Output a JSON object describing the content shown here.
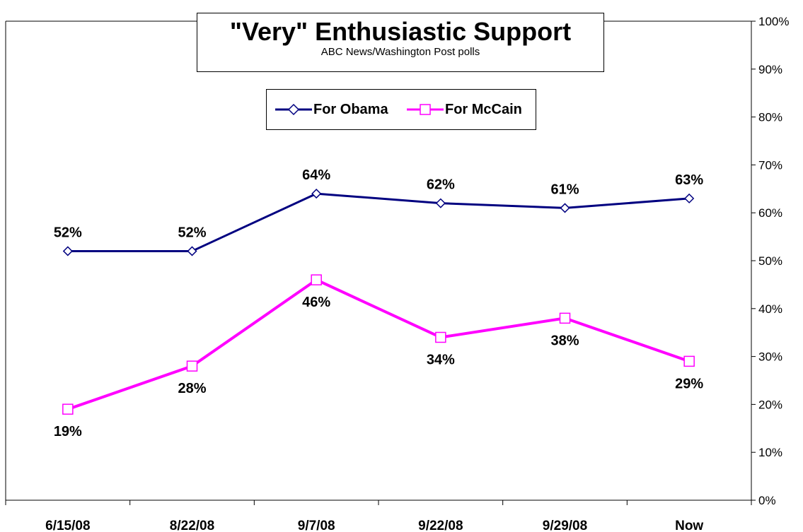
{
  "chart_data": {
    "type": "line",
    "title": "\"Very\" Enthusiastic Support",
    "subtitle": "ABC News/Washington Post polls",
    "categories": [
      "6/15/08",
      "8/22/08",
      "9/7/08",
      "9/22/08",
      "9/29/08",
      "Now"
    ],
    "series": [
      {
        "name": "For Obama",
        "values": [
          52,
          52,
          64,
          62,
          61,
          63
        ],
        "labels": [
          "52%",
          "52%",
          "64%",
          "62%",
          "61%",
          "63%"
        ],
        "color": "#000080",
        "marker": "diamond"
      },
      {
        "name": "For McCain",
        "values": [
          19,
          28,
          46,
          34,
          38,
          29
        ],
        "labels": [
          "19%",
          "28%",
          "46%",
          "34%",
          "38%",
          "29%"
        ],
        "color": "#ff00ff",
        "marker": "square"
      }
    ],
    "ylim": [
      0,
      100
    ],
    "yticks": [
      "0%",
      "10%",
      "20%",
      "30%",
      "40%",
      "50%",
      "60%",
      "70%",
      "80%",
      "90%",
      "100%"
    ],
    "y_axis_side": "right",
    "grid": false,
    "legend": "top-center"
  }
}
